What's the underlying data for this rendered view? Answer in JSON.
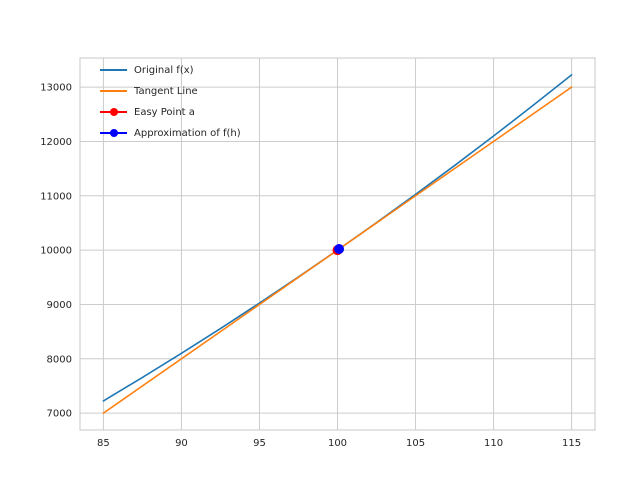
{
  "figure": {
    "background": "#ffffff",
    "plot_background": "#ffffff",
    "grid_color": "#cccccc",
    "frame_color": "#c8c8c8",
    "tick_label_color": "#262626"
  },
  "legend": {
    "items": [
      {
        "label": "Original f(x)",
        "color": "#1f77b4",
        "marker": "line"
      },
      {
        "label": "Tangent Line",
        "color": "#ff7f0e",
        "marker": "line"
      },
      {
        "label": "Easy Point a",
        "color": "#ff0000",
        "marker": "line-dot"
      },
      {
        "label": "Approximation of f(h)",
        "color": "#0000ff",
        "marker": "line-dot"
      }
    ]
  },
  "chart_data": {
    "type": "line",
    "title": "",
    "xlabel": "",
    "ylabel": "",
    "xlim": [
      83.5,
      116.5
    ],
    "ylim": [
      6689,
      13536
    ],
    "xticks": [
      85,
      90,
      95,
      100,
      105,
      110,
      115
    ],
    "yticks": [
      7000,
      8000,
      9000,
      10000,
      11000,
      12000,
      13000
    ],
    "grid": true,
    "legend_position": "upper left",
    "series": [
      {
        "name": "Original f(x)",
        "color": "#1f77b4",
        "x": [
          85,
          87.5,
          90,
          92.5,
          95,
          97.5,
          100,
          102.5,
          105,
          107.5,
          110,
          112.5,
          115
        ],
        "y": [
          7225,
          7656.25,
          8100,
          8556.25,
          9025,
          9506.25,
          10000,
          10506.25,
          11025,
          11556.25,
          12100,
          12656.25,
          13225
        ]
      },
      {
        "name": "Tangent Line",
        "color": "#ff7f0e",
        "x": [
          85,
          115
        ],
        "y": [
          7000,
          13000
        ]
      }
    ],
    "points": [
      {
        "name": "Easy Point a",
        "color": "#ff0000",
        "x": 100,
        "y": 10000,
        "r": 5
      },
      {
        "name": "Approximation of f(h)",
        "color": "#0000ff",
        "x": 100.1,
        "y": 10020,
        "r": 5
      }
    ]
  }
}
